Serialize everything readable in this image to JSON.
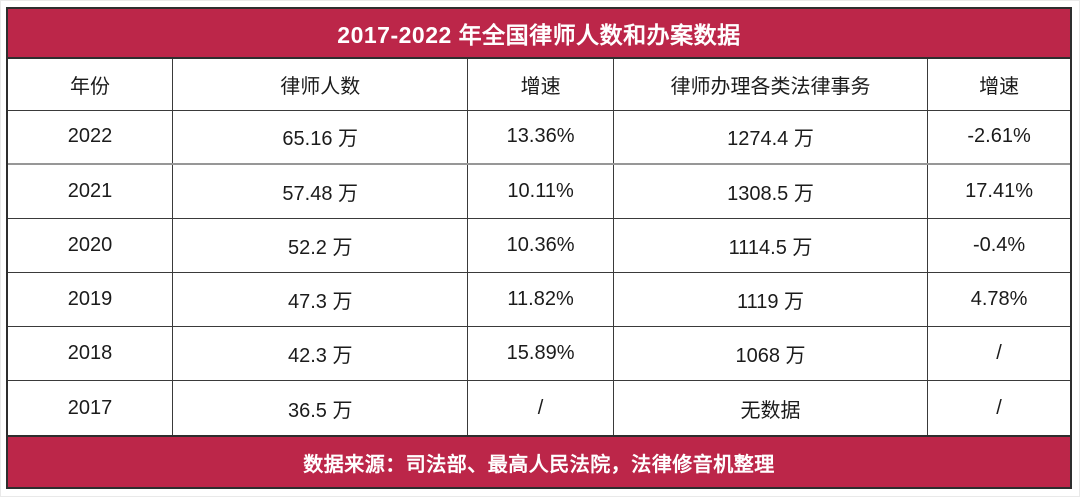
{
  "chart_data": {
    "type": "table",
    "title": "2017-2022 年全国律师人数和办案数据",
    "columns": [
      "年份",
      "律师人数",
      "增速",
      "律师办理各类法律事务",
      "增速"
    ],
    "rows": [
      [
        "2022",
        "65.16 万",
        "13.36%",
        "1274.4 万",
        "-2.61%"
      ],
      [
        "2021",
        "57.48 万",
        "10.11%",
        "1308.5 万",
        "17.41%"
      ],
      [
        "2020",
        "52.2 万",
        "10.36%",
        "1114.5 万",
        "-0.4%"
      ],
      [
        "2019",
        "47.3 万",
        "11.82%",
        "1119 万",
        "4.78%"
      ],
      [
        "2018",
        "42.3 万",
        "15.89%",
        "1068 万",
        "/"
      ],
      [
        "2017",
        "36.5 万",
        "/",
        "无数据",
        "/"
      ]
    ],
    "source": "数据来源：司法部、最高人民法院，法律修音机整理"
  },
  "colors": {
    "accent": "#BC2649",
    "border": "#333333",
    "cell_text": "#1B1B1B"
  }
}
